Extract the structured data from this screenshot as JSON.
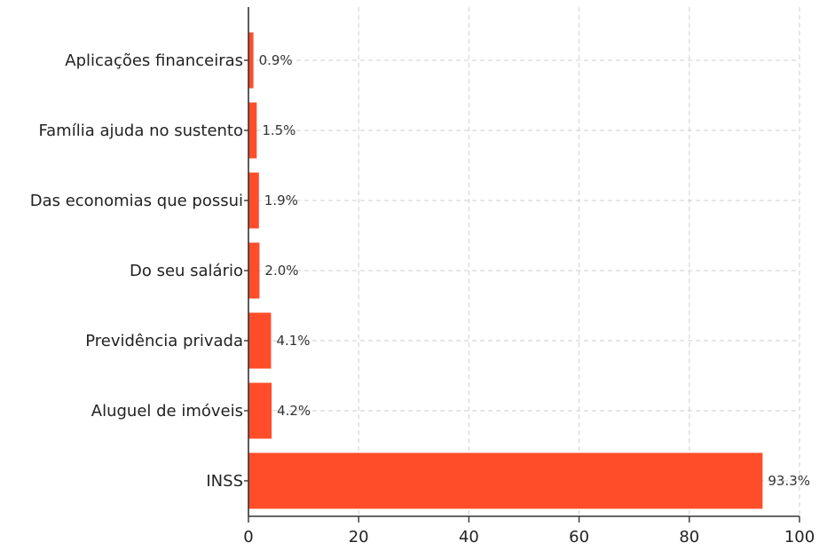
{
  "chart_data": {
    "type": "bar",
    "orientation": "horizontal",
    "categories": [
      "Aplicações financeiras",
      "Família ajuda no sustento",
      "Das economias que possui",
      "Do seu salário",
      "Previdência privada",
      "Aluguel de imóveis",
      "INSS"
    ],
    "values": [
      0.9,
      1.5,
      1.9,
      2.0,
      4.1,
      4.2,
      93.3
    ],
    "data_labels": [
      "0.9%",
      "1.5%",
      "1.9%",
      "2.0%",
      "4.1%",
      "4.2%",
      "93.3%"
    ],
    "x_ticks": [
      "0",
      "20",
      "40",
      "60",
      "80",
      "100"
    ],
    "xlim": [
      0,
      100
    ],
    "grid": true,
    "bar_color": "#ff4d2a",
    "title": "",
    "xlabel": "",
    "ylabel": ""
  }
}
